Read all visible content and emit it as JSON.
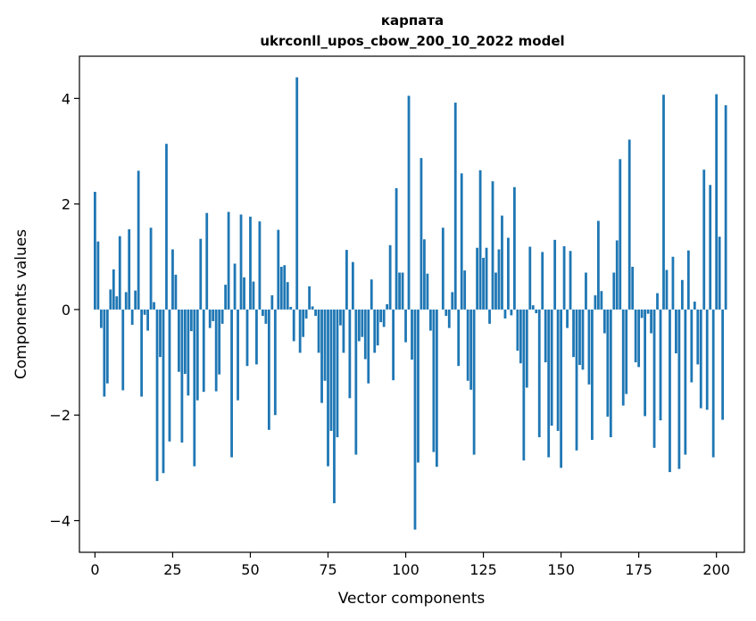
{
  "chart_data": {
    "type": "bar",
    "title_line1": "карпата",
    "title_line2": "ukrconll_upos_cbow_200_10_2022 model",
    "xlabel": "Vector components",
    "ylabel": "Components values",
    "xlim": [
      -5,
      209
    ],
    "ylim": [
      -4.6,
      4.8
    ],
    "xticks": [
      0,
      25,
      50,
      75,
      100,
      125,
      150,
      175,
      200
    ],
    "yticks": [
      -4,
      -2,
      0,
      2,
      4
    ],
    "bar_color": "#1f77b4",
    "values": [
      2.23,
      1.29,
      -0.35,
      -1.65,
      -1.4,
      0.38,
      0.76,
      0.25,
      1.39,
      -1.53,
      0.33,
      1.52,
      -0.29,
      0.36,
      2.63,
      -1.65,
      -0.1,
      -0.4,
      1.55,
      0.14,
      -3.25,
      -0.9,
      -3.1,
      3.14,
      -2.5,
      1.14,
      0.66,
      -1.18,
      -2.52,
      -1.22,
      -1.63,
      -0.41,
      -2.97,
      -1.72,
      1.34,
      -1.56,
      1.83,
      -0.35,
      -0.22,
      -1.55,
      -1.23,
      -0.27,
      0.47,
      1.85,
      -2.8,
      0.87,
      -1.72,
      1.8,
      0.61,
      -1.07,
      1.76,
      0.53,
      -1.04,
      1.67,
      -0.12,
      -0.27,
      -2.28,
      0.27,
      -2.0,
      1.51,
      0.81,
      0.84,
      0.52,
      0.05,
      -0.6,
      4.4,
      -0.82,
      -0.52,
      -0.17,
      0.44,
      0.06,
      -0.12,
      -0.82,
      -1.77,
      -1.35,
      -2.97,
      -2.3,
      -3.67,
      -2.42,
      -0.3,
      -0.82,
      1.13,
      -1.68,
      0.9,
      -2.75,
      -0.6,
      -0.52,
      -0.94,
      -1.4,
      0.57,
      -0.82,
      -0.68,
      -0.24,
      -0.33,
      0.1,
      1.22,
      -1.34,
      2.3,
      0.7,
      0.7,
      -0.62,
      4.05,
      -0.95,
      -4.17,
      -2.9,
      2.87,
      1.33,
      0.68,
      -0.4,
      -2.7,
      -2.98,
      0.0,
      1.55,
      -0.12,
      -0.35,
      0.33,
      3.92,
      -1.07,
      2.58,
      0.74,
      -1.35,
      -1.52,
      -2.75,
      1.17,
      2.64,
      0.98,
      1.17,
      -0.27,
      2.43,
      0.7,
      1.14,
      1.78,
      -0.17,
      1.36,
      -0.11,
      2.32,
      -0.78,
      -1.02,
      -2.86,
      -1.48,
      1.19,
      0.08,
      -0.07,
      -2.42,
      1.09,
      -1.0,
      -2.8,
      -2.2,
      1.32,
      -2.3,
      -3.0,
      1.2,
      -0.35,
      1.11,
      -0.9,
      -2.67,
      -1.05,
      -1.14,
      0.7,
      -1.42,
      -2.47,
      0.27,
      1.68,
      0.35,
      -0.45,
      -2.03,
      -2.42,
      0.7,
      1.31,
      2.85,
      -1.82,
      -1.6,
      3.22,
      0.81,
      -1.0,
      -1.09,
      -0.16,
      -2.02,
      -0.08,
      -0.45,
      -2.62,
      0.31,
      -2.1,
      4.07,
      0.75,
      -3.08,
      1.0,
      -0.83,
      -3.02,
      0.56,
      -2.75,
      1.12,
      -1.38,
      0.15,
      -1.04,
      -1.87,
      2.65,
      -1.9,
      2.36,
      -2.8,
      4.08,
      1.38,
      -2.09,
      3.87
    ]
  }
}
